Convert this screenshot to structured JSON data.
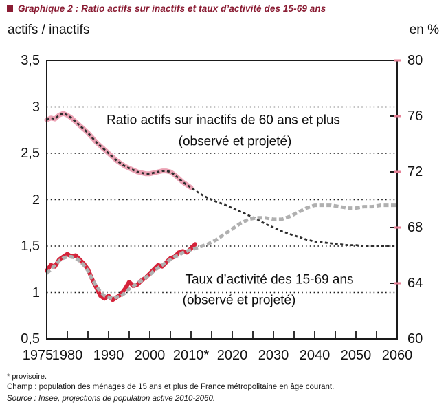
{
  "title": {
    "text": "Graphique 2 : Ratio actifs sur inactifs et taux d’activité des 15-69 ans"
  },
  "annotations": {
    "ratio_line1": "Ratio actifs sur inactifs de 60 ans et plus",
    "ratio_line2": "(observé et projeté)",
    "taux_line1": "Taux d’activité des 15-69 ans",
    "taux_line2": "(observé et projeté)"
  },
  "footnotes": {
    "asterisk": "* provisoire.",
    "champ": "Champ : population des ménages de 15 ans et plus de France métropolitaine en âge courant.",
    "source": "Source : Insee, projections de population active 2010-2060."
  },
  "colors": {
    "title_maroon": "#8a1c33",
    "axis": "#1a1a1a",
    "tick_accent_pink": "#e57f95",
    "ratio_observed_band": "#eba2b4",
    "ratio_dotted_line": "#2d2d2d",
    "taux_observed_red": "#d5233a",
    "taux_projected_gray": "#b0b0b0"
  },
  "chart_data": {
    "type": "line",
    "title": "Ratio actifs sur inactifs et taux d’activité des 15-69 ans",
    "legend": "none (in-chart text annotations)",
    "grid": "horizontal dotted lines at left-axis values 3, 2.5, 2, 1.5, 1",
    "x_axis": {
      "range": [
        1975,
        2060
      ],
      "tick_step": 5,
      "labels": [
        {
          "text": "1975",
          "value": 1975
        },
        {
          "text": "1980",
          "value": 1980
        },
        {
          "text": "1990",
          "value": 1990
        },
        {
          "text": "2000",
          "value": 2000
        },
        {
          "text": "2010*",
          "value": 2010
        },
        {
          "text": "2020",
          "value": 2020
        },
        {
          "text": "2030",
          "value": 2030
        },
        {
          "text": "2040",
          "value": 2040
        },
        {
          "text": "2050",
          "value": 2050
        },
        {
          "text": "2060",
          "value": 2060
        }
      ]
    },
    "left_axis": {
      "unit_label": "actifs / inactifs",
      "range": [
        0.5,
        3.5
      ],
      "gridlines": [
        3,
        2.5,
        2,
        1.5,
        1
      ],
      "ticks": [
        {
          "text": "3,5",
          "value": 3.5
        },
        {
          "text": "3",
          "value": 3
        },
        {
          "text": "2,5",
          "value": 2.5
        },
        {
          "text": "2",
          "value": 2
        },
        {
          "text": "1,5",
          "value": 1.5
        },
        {
          "text": "1",
          "value": 1
        },
        {
          "text": "0,5",
          "value": 0.5
        }
      ]
    },
    "right_axis": {
      "unit_label": "en %",
      "range": [
        60,
        80
      ],
      "ticks": [
        {
          "text": "80",
          "value": 80
        },
        {
          "text": "76",
          "value": 76
        },
        {
          "text": "72",
          "value": 72
        },
        {
          "text": "68",
          "value": 68
        },
        {
          "text": "64",
          "value": 64
        },
        {
          "text": "60",
          "value": 60
        }
      ]
    },
    "series": [
      {
        "id": "ratio_60_plus",
        "name": "Ratio actifs sur inactifs de 60 ans et plus (observé et projeté)",
        "axis": "left",
        "observed_until": 2010,
        "points": [
          [
            1975,
            2.86
          ],
          [
            1976,
            2.88
          ],
          [
            1977,
            2.87
          ],
          [
            1978,
            2.91
          ],
          [
            1979,
            2.93
          ],
          [
            1980,
            2.91
          ],
          [
            1981,
            2.88
          ],
          [
            1982,
            2.84
          ],
          [
            1983,
            2.8
          ],
          [
            1984,
            2.76
          ],
          [
            1985,
            2.72
          ],
          [
            1986,
            2.67
          ],
          [
            1987,
            2.62
          ],
          [
            1988,
            2.58
          ],
          [
            1989,
            2.54
          ],
          [
            1990,
            2.5
          ],
          [
            1991,
            2.46
          ],
          [
            1992,
            2.42
          ],
          [
            1993,
            2.39
          ],
          [
            1994,
            2.36
          ],
          [
            1995,
            2.34
          ],
          [
            1996,
            2.32
          ],
          [
            1997,
            2.3
          ],
          [
            1998,
            2.29
          ],
          [
            1999,
            2.28
          ],
          [
            2000,
            2.28
          ],
          [
            2001,
            2.29
          ],
          [
            2002,
            2.3
          ],
          [
            2003,
            2.31
          ],
          [
            2004,
            2.31
          ],
          [
            2005,
            2.3
          ],
          [
            2006,
            2.27
          ],
          [
            2007,
            2.23
          ],
          [
            2008,
            2.19
          ],
          [
            2009,
            2.16
          ],
          [
            2010,
            2.13
          ],
          [
            2012,
            2.07
          ],
          [
            2014,
            2.02
          ],
          [
            2016,
            1.98
          ],
          [
            2018,
            1.95
          ],
          [
            2020,
            1.91
          ],
          [
            2022,
            1.87
          ],
          [
            2024,
            1.83
          ],
          [
            2026,
            1.79
          ],
          [
            2028,
            1.74
          ],
          [
            2030,
            1.7
          ],
          [
            2032,
            1.66
          ],
          [
            2034,
            1.63
          ],
          [
            2036,
            1.6
          ],
          [
            2038,
            1.57
          ],
          [
            2040,
            1.55
          ],
          [
            2042,
            1.54
          ],
          [
            2044,
            1.53
          ],
          [
            2046,
            1.52
          ],
          [
            2048,
            1.51
          ],
          [
            2050,
            1.51
          ],
          [
            2052,
            1.5
          ],
          [
            2054,
            1.5
          ],
          [
            2056,
            1.5
          ],
          [
            2058,
            1.5
          ],
          [
            2060,
            1.5
          ]
        ]
      },
      {
        "id": "taux_activite_observe",
        "name": "Taux d’activité des 15-69 ans (observé)",
        "axis": "right",
        "points": [
          [
            1975,
            64.9
          ],
          [
            1976,
            65.3
          ],
          [
            1977,
            65.2
          ],
          [
            1978,
            65.7
          ],
          [
            1979,
            65.9
          ],
          [
            1980,
            66.1
          ],
          [
            1981,
            65.9
          ],
          [
            1982,
            66.0
          ],
          [
            1983,
            65.7
          ],
          [
            1984,
            65.4
          ],
          [
            1985,
            65.0
          ],
          [
            1986,
            64.3
          ],
          [
            1987,
            63.7
          ],
          [
            1988,
            63.1
          ],
          [
            1989,
            62.9
          ],
          [
            1990,
            63.1
          ],
          [
            1991,
            62.8
          ],
          [
            1992,
            63.0
          ],
          [
            1993,
            63.2
          ],
          [
            1994,
            63.6
          ],
          [
            1995,
            64.1
          ],
          [
            1996,
            63.8
          ],
          [
            1997,
            63.9
          ],
          [
            1998,
            64.2
          ],
          [
            1999,
            64.4
          ],
          [
            2000,
            64.7
          ],
          [
            2001,
            65.0
          ],
          [
            2002,
            65.3
          ],
          [
            2003,
            65.2
          ],
          [
            2004,
            65.5
          ],
          [
            2005,
            65.8
          ],
          [
            2006,
            65.9
          ],
          [
            2007,
            66.2
          ],
          [
            2008,
            66.3
          ],
          [
            2009,
            66.2
          ],
          [
            2010,
            66.5
          ],
          [
            2011,
            66.8
          ]
        ]
      },
      {
        "id": "taux_activite_projete",
        "name": "Taux d’activité des 15-69 ans (observé et projeté)",
        "axis": "right",
        "points": [
          [
            1975,
            64.7
          ],
          [
            1976,
            65.0
          ],
          [
            1977,
            65.3
          ],
          [
            1978,
            65.6
          ],
          [
            1979,
            65.8
          ],
          [
            1980,
            65.9
          ],
          [
            1981,
            65.9
          ],
          [
            1982,
            65.8
          ],
          [
            1983,
            65.6
          ],
          [
            1984,
            65.3
          ],
          [
            1985,
            64.9
          ],
          [
            1986,
            64.3
          ],
          [
            1987,
            63.8
          ],
          [
            1988,
            63.4
          ],
          [
            1989,
            63.1
          ],
          [
            1990,
            63.0
          ],
          [
            1991,
            62.9
          ],
          [
            1992,
            63.0
          ],
          [
            1993,
            63.1
          ],
          [
            1994,
            63.3
          ],
          [
            1995,
            63.6
          ],
          [
            1996,
            63.8
          ],
          [
            1997,
            64.0
          ],
          [
            1998,
            64.2
          ],
          [
            1999,
            64.4
          ],
          [
            2000,
            64.6
          ],
          [
            2001,
            64.9
          ],
          [
            2002,
            65.1
          ],
          [
            2003,
            65.3
          ],
          [
            2004,
            65.5
          ],
          [
            2005,
            65.7
          ],
          [
            2006,
            65.9
          ],
          [
            2007,
            66.0
          ],
          [
            2008,
            66.2
          ],
          [
            2009,
            66.3
          ],
          [
            2010,
            66.4
          ],
          [
            2012,
            66.6
          ],
          [
            2014,
            66.8
          ],
          [
            2016,
            67.1
          ],
          [
            2018,
            67.5
          ],
          [
            2020,
            67.9
          ],
          [
            2022,
            68.3
          ],
          [
            2024,
            68.6
          ],
          [
            2026,
            68.7
          ],
          [
            2028,
            68.7
          ],
          [
            2030,
            68.6
          ],
          [
            2032,
            68.6
          ],
          [
            2034,
            68.8
          ],
          [
            2036,
            69.1
          ],
          [
            2038,
            69.4
          ],
          [
            2040,
            69.6
          ],
          [
            2042,
            69.6
          ],
          [
            2044,
            69.6
          ],
          [
            2046,
            69.5
          ],
          [
            2048,
            69.4
          ],
          [
            2050,
            69.4
          ],
          [
            2052,
            69.5
          ],
          [
            2054,
            69.5
          ],
          [
            2056,
            69.6
          ],
          [
            2058,
            69.6
          ],
          [
            2060,
            69.6
          ]
        ]
      }
    ],
    "layers": [
      {
        "series": "ratio_60_plus",
        "max_year": 2010.5,
        "color": "#eba2b4",
        "width": 7,
        "dash": null
      },
      {
        "series": "taux_activite_observe",
        "color": "#d5233a",
        "width": 6,
        "dash": null
      },
      {
        "series": "ratio_60_plus",
        "color": "#2d2d2d",
        "width": 2.8,
        "dash": "4 3.5"
      },
      {
        "series": "taux_activite_projete",
        "color": "#b0b0b0",
        "width": 5,
        "dash": "7 3.5"
      }
    ]
  }
}
